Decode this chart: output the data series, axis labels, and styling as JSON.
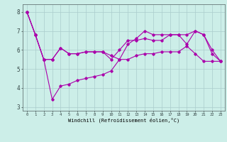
{
  "xlabel": "Windchill (Refroidissement éolien,°C)",
  "background_color": "#cceee8",
  "line_color": "#aa00aa",
  "grid_color": "#aacccc",
  "series": [
    [
      8.0,
      6.8,
      5.5,
      5.5,
      6.1,
      5.8,
      5.8,
      5.9,
      5.9,
      5.9,
      5.7,
      5.5,
      5.5,
      5.7,
      5.8,
      5.8,
      5.9,
      5.9,
      5.9,
      6.2,
      5.8,
      5.4,
      5.4,
      5.4
    ],
    [
      8.0,
      6.8,
      5.5,
      3.4,
      4.1,
      4.2,
      4.4,
      4.5,
      4.6,
      4.7,
      4.9,
      5.5,
      6.3,
      6.6,
      7.0,
      6.8,
      6.8,
      6.8,
      6.8,
      6.3,
      7.0,
      6.8,
      5.8,
      5.4
    ],
    [
      8.0,
      6.8,
      5.5,
      5.5,
      6.1,
      5.8,
      5.8,
      5.9,
      5.9,
      5.9,
      5.5,
      6.0,
      6.5,
      6.5,
      6.6,
      6.5,
      6.5,
      6.8,
      6.8,
      6.8,
      7.0,
      6.8,
      6.0,
      5.4
    ]
  ],
  "xlim": [
    -0.5,
    23.5
  ],
  "ylim": [
    2.8,
    8.4
  ],
  "yticks": [
    3,
    4,
    5,
    6,
    7,
    8
  ],
  "xticks": [
    0,
    1,
    2,
    3,
    4,
    5,
    6,
    7,
    8,
    9,
    10,
    11,
    12,
    13,
    14,
    15,
    16,
    17,
    18,
    19,
    20,
    21,
    22,
    23
  ]
}
